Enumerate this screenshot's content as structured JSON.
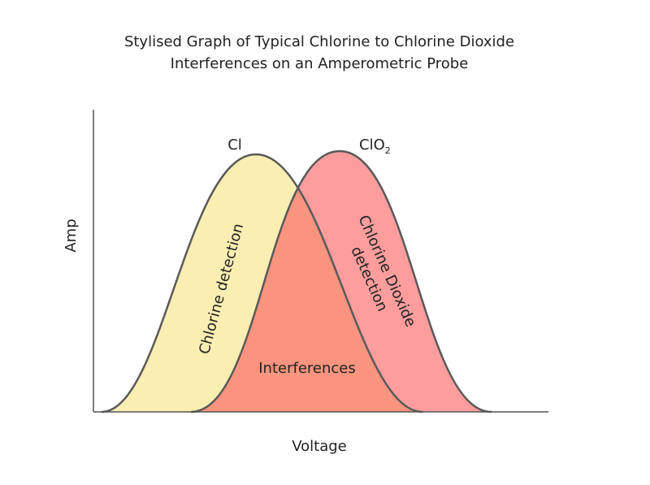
{
  "title": [
    "Stylised Graph of Typical Chlorine to Chlorine Dioxide",
    "Interferences on an Amperometric Probe"
  ],
  "x_axis_label": "Voltage",
  "y_axis_label": "Amp",
  "curves": [
    {
      "label": "Cl",
      "region_label": [
        "Chlorine detection"
      ]
    },
    {
      "label": "ClO",
      "subscript": "2",
      "region_label": [
        "Chlorine Dioxide",
        "detection"
      ]
    }
  ],
  "overlap_label": "Interferences"
}
